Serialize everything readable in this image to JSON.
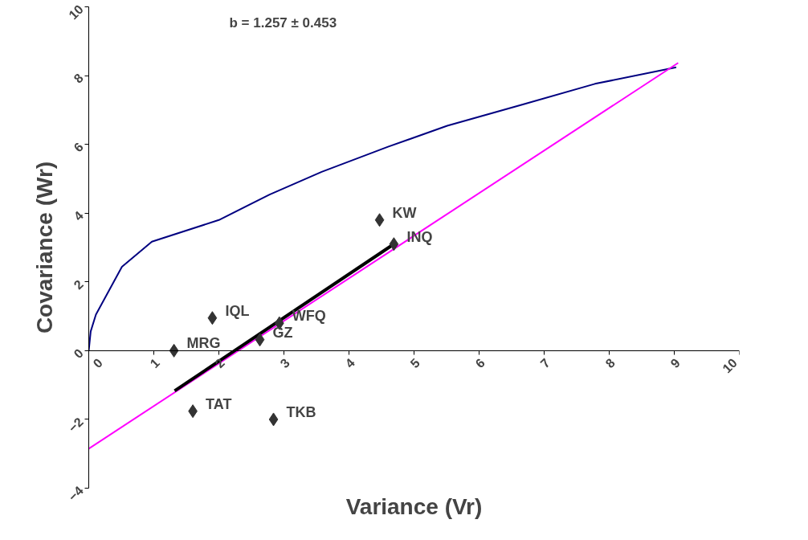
{
  "chart_data": {
    "type": "scatter",
    "xlabel": "Variance (Vr)",
    "ylabel": "Covariance (Wr)",
    "xlim": [
      0,
      10
    ],
    "ylim": [
      -4,
      10
    ],
    "xticks": [
      0,
      1,
      2,
      3,
      4,
      5,
      6,
      7,
      8,
      9,
      10
    ],
    "yticks": [
      -4,
      -2,
      0,
      2,
      4,
      6,
      8,
      10
    ],
    "grid": false,
    "series": [
      {
        "type": "line",
        "color": "#000080",
        "x": [
          0,
          0.03,
          0.11,
          0.51,
          0.97,
          2.0,
          2.78,
          3.58,
          4.6,
          5.51,
          6.65,
          7.78,
          9.03
        ],
        "values": [
          0,
          0.56,
          1.05,
          2.44,
          3.17,
          3.8,
          4.54,
          5.2,
          5.93,
          6.54,
          7.15,
          7.76,
          8.24
        ]
      },
      {
        "type": "line",
        "color": "#ff00ff",
        "x": [
          0,
          9.06
        ],
        "values": [
          -2.85,
          8.37
        ]
      },
      {
        "type": "line",
        "color": "#000000",
        "x": [
          1.32,
          4.69
        ],
        "values": [
          -1.17,
          3.1
        ]
      },
      {
        "color": "#333333",
        "marker": "diamond",
        "x": [
          4.47,
          4.69,
          1.9,
          2.93,
          2.63,
          1.31,
          1.6,
          2.84
        ],
        "values": [
          3.8,
          3.1,
          0.95,
          0.8,
          0.32,
          0.0,
          -1.76,
          -2.0
        ]
      }
    ],
    "annotations": [
      "b = 1.257 ± 0.453",
      {
        "text": "KW",
        "x": 4.47,
        "y": 3.8
      },
      {
        "text": "INQ",
        "x": 4.69,
        "y": 3.1
      },
      {
        "text": "IQL",
        "x": 1.9,
        "y": 0.95
      },
      {
        "text": "WFQ",
        "x": 2.93,
        "y": 0.8
      },
      {
        "text": "GZ",
        "x": 2.63,
        "y": 0.32
      },
      {
        "text": "MRG",
        "x": 1.31,
        "y": 0.0
      },
      {
        "text": "TAT",
        "x": 1.6,
        "y": -1.76
      },
      {
        "text": "TKB",
        "x": 2.84,
        "y": -2.0
      }
    ]
  }
}
